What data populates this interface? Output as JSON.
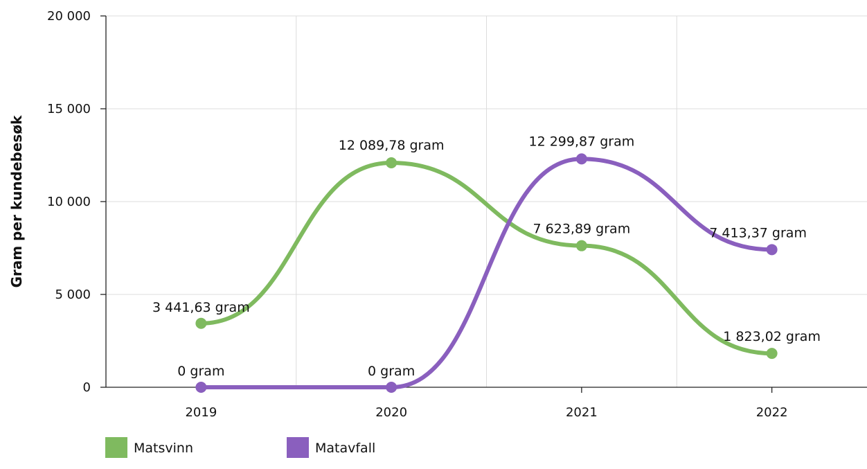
{
  "chart_data": {
    "type": "line",
    "smooth": true,
    "categories": [
      "2019",
      "2020",
      "2021",
      "2022"
    ],
    "ylabel": "Gram per kundebesøk",
    "xlabel": "",
    "ylim": [
      0,
      20000
    ],
    "yticks": [
      0,
      5000,
      10000,
      15000,
      20000
    ],
    "ytick_labels": [
      "0",
      "5 000",
      "10 000",
      "15 000",
      "20 000"
    ],
    "grid": true,
    "legend_position": "bottom-left",
    "series": [
      {
        "name": "Matsvinn",
        "color": "#7fba5f",
        "values": [
          3441.63,
          12089.78,
          7623.89,
          1823.02
        ],
        "labels": [
          "3 441,63 gram",
          "12 089,78 gram",
          "7 623,89 gram",
          "1 823,02 gram"
        ]
      },
      {
        "name": "Matavfall",
        "color": "#8a5fbe",
        "values": [
          0,
          0,
          12299.87,
          7413.37
        ],
        "labels": [
          "0 gram",
          "0 gram",
          "12 299,87 gram",
          "7 413,37 gram"
        ]
      }
    ]
  }
}
